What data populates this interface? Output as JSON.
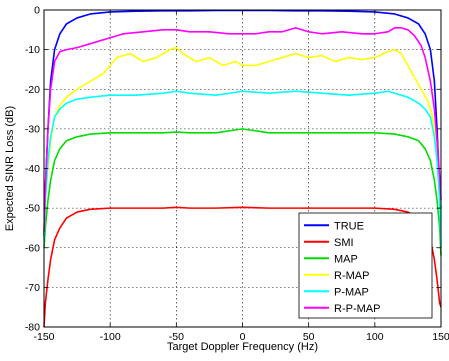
{
  "chart_data": {
    "type": "line",
    "title": "",
    "xlabel": "Target Doppler Frequency (Hz)",
    "ylabel": "Expected SINR Loss (dB)",
    "xlim": [
      -150,
      150
    ],
    "ylim": [
      -80,
      0
    ],
    "xticks": [
      -150,
      -100,
      -50,
      0,
      50,
      100,
      150
    ],
    "yticks": [
      0,
      -10,
      -20,
      -30,
      -40,
      -50,
      -60,
      -70,
      -80
    ],
    "xtick_labels": [
      "-150",
      "-100",
      "-50",
      "0",
      "50",
      "100",
      "150"
    ],
    "ytick_labels": [
      "0",
      "-10",
      "-20",
      "-30",
      "-40",
      "-50",
      "-60",
      "-70",
      "-80"
    ],
    "grid": true,
    "legend_position": "bottom-right",
    "series": [
      {
        "name": "TRUE",
        "color": "#0000ff",
        "x": [
          -150,
          -149,
          -147,
          -145,
          -142,
          -138,
          -133,
          -125,
          -115,
          -100,
          -80,
          -60,
          -40,
          -20,
          0,
          20,
          40,
          60,
          80,
          100,
          115,
          125,
          133,
          138,
          142,
          145,
          147,
          149,
          150
        ],
        "y": [
          -57,
          -45,
          -30,
          -18,
          -10,
          -6,
          -3.5,
          -2,
          -1,
          -0.5,
          -0.3,
          -0.2,
          -0.2,
          -0.1,
          -0.1,
          -0.1,
          -0.2,
          -0.2,
          -0.3,
          -0.5,
          -1,
          -2,
          -3.5,
          -6,
          -10,
          -18,
          -30,
          -45,
          -50
        ]
      },
      {
        "name": "SMI",
        "color": "#ff0000",
        "x": [
          -150,
          -149,
          -147,
          -145,
          -142,
          -138,
          -133,
          -125,
          -115,
          -100,
          -80,
          -60,
          -50,
          -40,
          -20,
          0,
          20,
          40,
          60,
          80,
          100,
          115,
          125,
          133,
          138,
          142,
          145,
          147,
          149,
          150
        ],
        "y": [
          -80,
          -74,
          -68,
          -63,
          -58,
          -55,
          -52.5,
          -51,
          -50.3,
          -50,
          -50,
          -50,
          -49.8,
          -50,
          -50,
          -49.8,
          -50,
          -50,
          -50,
          -50,
          -50,
          -50.3,
          -51,
          -52.5,
          -55,
          -58,
          -63,
          -68,
          -74,
          -75
        ]
      },
      {
        "name": "MAP",
        "color": "#00dd00",
        "x": [
          -150,
          -149,
          -147,
          -145,
          -142,
          -138,
          -133,
          -125,
          -115,
          -100,
          -80,
          -60,
          -50,
          -40,
          -20,
          0,
          20,
          40,
          60,
          80,
          100,
          115,
          125,
          133,
          138,
          142,
          145,
          147,
          149,
          150
        ],
        "y": [
          -60,
          -55,
          -48,
          -43,
          -38,
          -35,
          -33,
          -32,
          -31.3,
          -31,
          -31,
          -31,
          -30.8,
          -31,
          -31,
          -30,
          -31,
          -31,
          -31,
          -31,
          -31,
          -31.3,
          -32,
          -33,
          -35,
          -38,
          -43,
          -48,
          -55,
          -62
        ]
      },
      {
        "name": "R-MAP",
        "color": "#ffff00",
        "x": [
          -150,
          -149,
          -147,
          -145,
          -142,
          -138,
          -133,
          -125,
          -115,
          -105,
          -95,
          -85,
          -75,
          -65,
          -55,
          -50,
          -45,
          -35,
          -25,
          -15,
          -5,
          0,
          10,
          20,
          30,
          40,
          50,
          60,
          70,
          80,
          90,
          100,
          110,
          115,
          120,
          125,
          130,
          135,
          140,
          143,
          146,
          148,
          150
        ],
        "y": [
          -56,
          -48,
          -40,
          -33,
          -27,
          -24,
          -22,
          -20,
          -18,
          -16,
          -12,
          -11,
          -13,
          -12,
          -10,
          -9.5,
          -11,
          -13,
          -12,
          -14,
          -13,
          -14,
          -14,
          -13,
          -12,
          -11,
          -12,
          -11.5,
          -13,
          -12,
          -12.5,
          -12,
          -10.5,
          -10,
          -11,
          -14,
          -17,
          -20,
          -23,
          -26,
          -32,
          -40,
          -50
        ]
      },
      {
        "name": "P-MAP",
        "color": "#00ffff",
        "x": [
          -150,
          -149,
          -147,
          -145,
          -142,
          -138,
          -133,
          -125,
          -115,
          -100,
          -80,
          -60,
          -50,
          -40,
          -20,
          0,
          20,
          40,
          60,
          80,
          100,
          110,
          115,
          125,
          133,
          138,
          142,
          145,
          147,
          149,
          150
        ],
        "y": [
          -58,
          -48,
          -38,
          -32,
          -27,
          -25,
          -23.5,
          -22.5,
          -22,
          -21.5,
          -21.5,
          -21,
          -20.5,
          -21,
          -21.5,
          -20.5,
          -21,
          -20.5,
          -21,
          -21.5,
          -21,
          -20.5,
          -21,
          -22,
          -23.5,
          -25,
          -27,
          -32,
          -38,
          -48,
          -60
        ]
      },
      {
        "name": "R-P-MAP",
        "color": "#ff00ff",
        "x": [
          -150,
          -149,
          -147,
          -145,
          -142,
          -138,
          -133,
          -125,
          -115,
          -100,
          -90,
          -75,
          -60,
          -50,
          -40,
          -25,
          -10,
          0,
          10,
          20,
          30,
          40,
          50,
          60,
          75,
          90,
          100,
          110,
          115,
          120,
          125,
          130,
          135,
          138,
          142,
          145,
          147,
          149,
          150
        ],
        "y": [
          -56,
          -45,
          -30,
          -20,
          -13,
          -10.5,
          -10,
          -9.5,
          -8.5,
          -7,
          -6,
          -5.5,
          -5,
          -5,
          -5.5,
          -5.5,
          -6,
          -6,
          -6,
          -5.5,
          -5.5,
          -4.5,
          -5.5,
          -6,
          -5.5,
          -6,
          -6,
          -5.5,
          -4.5,
          -4.5,
          -5,
          -6.5,
          -9,
          -12,
          -18,
          -25,
          -33,
          -42,
          -48
        ]
      }
    ]
  }
}
